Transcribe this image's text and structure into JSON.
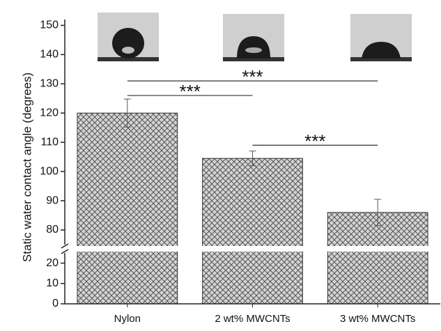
{
  "chart_data": {
    "type": "bar",
    "y_label": "Static water contact angle (degrees)",
    "categories": [
      "Nylon",
      "2  wt% MWCNTs",
      "3  wt% MWCNTs"
    ],
    "values": [
      120,
      104.5,
      86
    ],
    "errors": [
      4.8,
      2.5,
      4.5
    ],
    "ylim_lower": [
      0,
      25
    ],
    "yticks_lower": [
      0,
      10,
      20
    ],
    "ylim_upper": [
      75,
      152
    ],
    "yticks_upper": [
      80,
      90,
      100,
      110,
      120,
      130,
      140,
      150
    ],
    "color": "#9a9a9a",
    "annotations": [
      {
        "label": "***",
        "from": 0,
        "to": 2,
        "y": 131
      },
      {
        "label": "***",
        "from": 0,
        "to": 1,
        "y": 126
      },
      {
        "label": "***",
        "from": 1,
        "to": 2,
        "y": 109
      }
    ]
  }
}
